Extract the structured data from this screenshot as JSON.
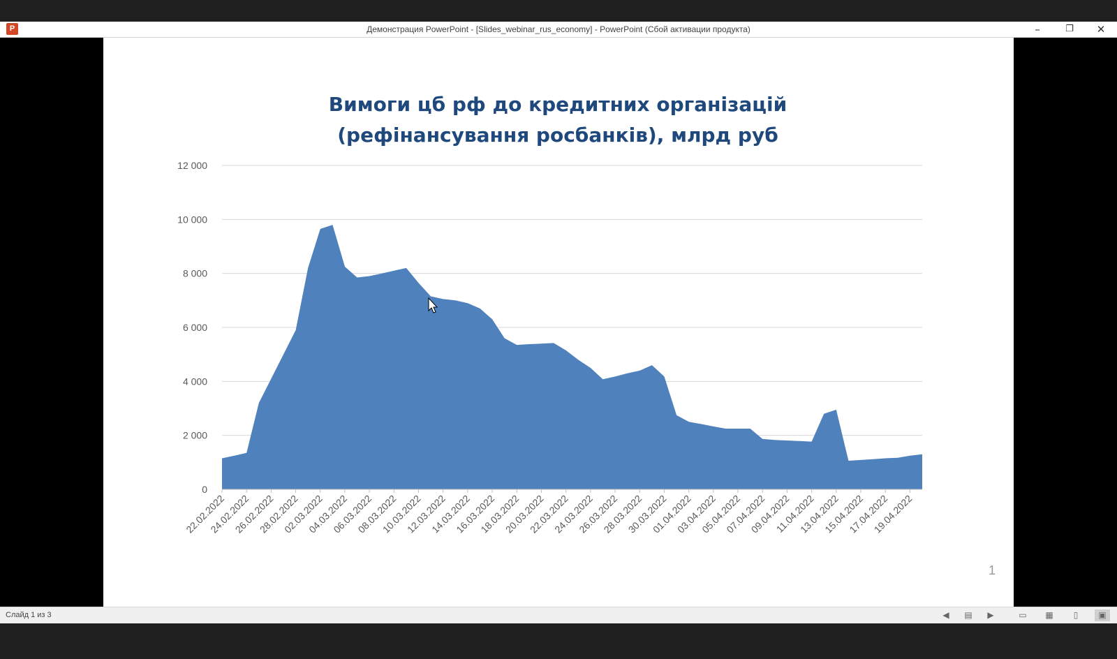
{
  "window": {
    "title": "Демонстрация PowerPoint - [Slides_webinar_rus_economy] - PowerPoint (Сбой активации продукта)",
    "app_icon_label": "P",
    "minimize_glyph": "–",
    "restore_glyph": "❐",
    "close_glyph": "✕"
  },
  "slide": {
    "number": "1",
    "title_line1": "Вимоги цб рф до кредитних організацій",
    "title_line2": "(рефінансування росбанків), млрд руб"
  },
  "status": {
    "slide_counter": "Слайд 1 из 3"
  },
  "toolbar_icons": [
    "prev-slide-icon",
    "notes-icon",
    "next-slide-icon",
    "normal-view-icon",
    "slide-sorter-icon",
    "reading-view-icon",
    "slideshow-icon"
  ],
  "colors": {
    "title": "#1f497d",
    "area": "#4f81bd"
  },
  "chart_data": {
    "type": "area",
    "title": "Вимоги цб рф до кредитних організацій (рефінансування росбанків), млрд руб",
    "xlabel": "",
    "ylabel": "",
    "ylim": [
      0,
      12000
    ],
    "yticks": [
      0,
      2000,
      4000,
      6000,
      8000,
      10000,
      12000
    ],
    "ytick_labels": [
      "0",
      "2 000",
      "4 000",
      "6 000",
      "8 000",
      "10 000",
      "12 000"
    ],
    "xtick_labels": [
      "22.02.2022",
      "24.02.2022",
      "26.02.2022",
      "28.02.2022",
      "02.03.2022",
      "04.03.2022",
      "06.03.2022",
      "08.03.2022",
      "10.03.2022",
      "12.03.2022",
      "14.03.2022",
      "16.03.2022",
      "18.03.2022",
      "20.03.2022",
      "22.03.2022",
      "24.03.2022",
      "26.03.2022",
      "28.03.2022",
      "30.03.2022",
      "01.04.2022",
      "03.04.2022",
      "05.04.2022",
      "07.04.2022",
      "09.04.2022",
      "11.04.2022",
      "13.04.2022",
      "15.04.2022",
      "17.04.2022",
      "19.04.2022"
    ],
    "grid": true,
    "legend": "none",
    "series": [
      {
        "x": [
          "22.02.2022",
          "23.02.2022",
          "24.02.2022",
          "25.02.2022",
          "26.02.2022",
          "27.02.2022",
          "28.02.2022",
          "01.03.2022",
          "02.03.2022",
          "03.03.2022",
          "04.03.2022",
          "05.03.2022",
          "06.03.2022",
          "07.03.2022",
          "08.03.2022",
          "09.03.2022",
          "10.03.2022",
          "11.03.2022",
          "12.03.2022",
          "13.03.2022",
          "14.03.2022",
          "15.03.2022",
          "16.03.2022",
          "17.03.2022",
          "18.03.2022",
          "19.03.2022",
          "20.03.2022",
          "21.03.2022",
          "22.03.2022",
          "23.03.2022",
          "24.03.2022",
          "25.03.2022",
          "26.03.2022",
          "27.03.2022",
          "28.03.2022",
          "29.03.2022",
          "30.03.2022",
          "31.03.2022",
          "01.04.2022",
          "02.04.2022",
          "03.04.2022",
          "04.04.2022",
          "05.04.2022",
          "06.04.2022",
          "07.04.2022",
          "08.04.2022",
          "09.04.2022",
          "10.04.2022",
          "11.04.2022",
          "12.04.2022",
          "13.04.2022",
          "14.04.2022",
          "15.04.2022",
          "16.04.2022",
          "17.04.2022",
          "18.04.2022",
          "19.04.2022",
          "20.04.2022"
        ],
        "values": [
          1150,
          1250,
          1350,
          3200,
          4100,
          5000,
          5900,
          8200,
          9650,
          9800,
          8250,
          7850,
          7900,
          8000,
          8100,
          8200,
          7650,
          7150,
          7050,
          7000,
          6900,
          6700,
          6300,
          5600,
          5350,
          5380,
          5400,
          5420,
          5150,
          4800,
          4500,
          4080,
          4180,
          4300,
          4400,
          4600,
          4180,
          2750,
          2500,
          2420,
          2330,
          2250,
          2250,
          2250,
          1870,
          1830,
          1810,
          1790,
          1770,
          2800,
          2950,
          1060,
          1090,
          1120,
          1150,
          1170,
          1250,
          1300
        ]
      }
    ]
  }
}
